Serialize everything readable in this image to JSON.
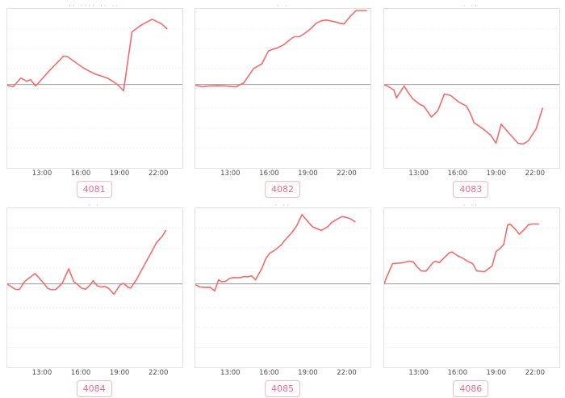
{
  "style": {
    "line_color": "#f56b6b",
    "baseline_color": "#9a9a9a",
    "grid_color": "#efefef",
    "plot_border_color": "#e2e2e2",
    "tick_label_color": "#4d4d4d",
    "badge_text_color": "#ec6d8d",
    "badge_border_color": "#f6b9c6",
    "background": "#ffffff"
  },
  "axis": {
    "tick_labels": [
      "13:00",
      "16:00",
      "19:00",
      "22:00"
    ],
    "tick_hours": [
      13,
      16,
      19,
      22
    ],
    "x_range_hours": [
      10.25,
      23.8
    ]
  },
  "chart_data": [
    {
      "type": "line",
      "chart_label": "4081",
      "title_fragment": "·· ···· ·· ··",
      "x_axis": {
        "tick_labels": [
          "13:00",
          "16:00",
          "19:00",
          "22:00"
        ],
        "unit": "time of day (hours)"
      },
      "y_axis": {
        "unit": "percent of plot height relative to zero baseline",
        "baseline": 0,
        "range_pct": [
          -52.5,
          47.5
        ]
      },
      "series": [
        {
          "name": "value",
          "color": "#f56b6b",
          "points_hour_pct": [
            [
              10.25,
              -0.5
            ],
            [
              10.7,
              -1.5
            ],
            [
              11.3,
              4
            ],
            [
              11.75,
              2
            ],
            [
              12.05,
              3
            ],
            [
              12.45,
              -1
            ],
            [
              13.5,
              8.5
            ],
            [
              14.6,
              17.8
            ],
            [
              14.9,
              17.5
            ],
            [
              16.2,
              10
            ],
            [
              17.05,
              6.5
            ],
            [
              18,
              4
            ],
            [
              18.5,
              1.5
            ],
            [
              18.9,
              -1
            ],
            [
              19.25,
              -4
            ],
            [
              19.9,
              33
            ],
            [
              20.55,
              37
            ],
            [
              21.45,
              41
            ],
            [
              22.2,
              38
            ],
            [
              22.6,
              35
            ]
          ]
        }
      ]
    },
    {
      "type": "line",
      "chart_label": "4082",
      "title_fragment": "· ·",
      "x_axis": {
        "tick_labels": [
          "13:00",
          "16:00",
          "19:00",
          "22:00"
        ],
        "unit": "time of day (hours)"
      },
      "y_axis": {
        "unit": "percent of plot height relative to zero baseline",
        "baseline": 0,
        "range_pct": [
          -52.5,
          47.5
        ]
      },
      "series": [
        {
          "name": "value",
          "color": "#f56b6b",
          "points_hour_pct": [
            [
              10.25,
              -0.5
            ],
            [
              10.8,
              -1.5
            ],
            [
              11.3,
              -1
            ],
            [
              12,
              -0.8
            ],
            [
              12.6,
              -1
            ],
            [
              13,
              -1.3
            ],
            [
              13.4,
              -1.5
            ],
            [
              14,
              1
            ],
            [
              14.75,
              10
            ],
            [
              15.4,
              13
            ],
            [
              15.9,
              21
            ],
            [
              16.2,
              22
            ],
            [
              16.6,
              23
            ],
            [
              17.1,
              25
            ],
            [
              17.55,
              28
            ],
            [
              17.9,
              30
            ],
            [
              18.3,
              30
            ],
            [
              18.7,
              32
            ],
            [
              19.25,
              35.5
            ],
            [
              19.6,
              38.5
            ],
            [
              20,
              40
            ],
            [
              20.4,
              40.5
            ],
            [
              21,
              39.5
            ],
            [
              21.4,
              38.5
            ],
            [
              21.75,
              38
            ],
            [
              22.25,
              43
            ],
            [
              22.7,
              46.5
            ],
            [
              23.5,
              46.5
            ]
          ]
        }
      ]
    },
    {
      "type": "line",
      "chart_label": "4083",
      "title_fragment": "· ··",
      "x_axis": {
        "tick_labels": [
          "13:00",
          "16:00",
          "19:00",
          "22:00"
        ],
        "unit": "time of day (hours)"
      },
      "y_axis": {
        "unit": "percent of plot height relative to zero baseline",
        "baseline": 0,
        "range_pct": [
          -52.5,
          47.5
        ]
      },
      "series": [
        {
          "name": "value",
          "color": "#f56b6b",
          "points_hour_pct": [
            [
              10.25,
              -0.3
            ],
            [
              10.5,
              -1
            ],
            [
              11,
              -3.5
            ],
            [
              11.2,
              -8.5
            ],
            [
              11.8,
              -1
            ],
            [
              12.1,
              -5
            ],
            [
              12.45,
              -9
            ],
            [
              13,
              -12.5
            ],
            [
              13.3,
              -13.5
            ],
            [
              13.9,
              -20.5
            ],
            [
              14.4,
              -16.5
            ],
            [
              14.9,
              -6
            ],
            [
              15.4,
              -7
            ],
            [
              16,
              -11
            ],
            [
              16.6,
              -13.5
            ],
            [
              16.9,
              -18
            ],
            [
              17.2,
              -24
            ],
            [
              17.9,
              -28
            ],
            [
              18.5,
              -32
            ],
            [
              18.9,
              -37
            ],
            [
              19.3,
              -25
            ],
            [
              20,
              -31.5
            ],
            [
              20.6,
              -37
            ],
            [
              21,
              -37.5
            ],
            [
              21.4,
              -35.5
            ],
            [
              22,
              -28
            ],
            [
              22.5,
              -15
            ]
          ]
        }
      ]
    },
    {
      "type": "line",
      "chart_label": "4084",
      "title_fragment": "· ·",
      "x_axis": {
        "tick_labels": [
          "13:00",
          "16:00",
          "19:00",
          "22:00"
        ],
        "unit": "time of day (hours)"
      },
      "y_axis": {
        "unit": "percent of plot height relative to zero baseline",
        "baseline": 0,
        "range_pct": [
          -52.5,
          47.5
        ]
      },
      "series": [
        {
          "name": "value",
          "color": "#f56b6b",
          "points_hour_pct": [
            [
              10.3,
              -0.5
            ],
            [
              10.9,
              -3.5
            ],
            [
              11.2,
              -3.5
            ],
            [
              11.6,
              1.5
            ],
            [
              12.4,
              6.5
            ],
            [
              12.9,
              2
            ],
            [
              13.4,
              -3
            ],
            [
              13.7,
              -3.7
            ],
            [
              14,
              -3.5
            ],
            [
              14.5,
              0.3
            ],
            [
              15,
              9.5
            ],
            [
              15.4,
              1.3
            ],
            [
              15.7,
              -0.5
            ],
            [
              16,
              -2.7
            ],
            [
              16.3,
              -3.4
            ],
            [
              16.6,
              -1.3
            ],
            [
              16.9,
              2
            ],
            [
              17.2,
              -1.2
            ],
            [
              17.5,
              -2
            ],
            [
              17.8,
              -1.6
            ],
            [
              18.1,
              -2.9
            ],
            [
              18.5,
              -6.5
            ],
            [
              19,
              -0.5
            ],
            [
              19.25,
              0.3
            ],
            [
              19.6,
              -2.2
            ],
            [
              19.8,
              -2.7
            ],
            [
              20.2,
              2
            ],
            [
              20.6,
              8
            ],
            [
              21,
              14
            ],
            [
              21.4,
              20
            ],
            [
              21.8,
              26
            ],
            [
              22.25,
              30
            ],
            [
              22.5,
              33.5
            ]
          ]
        }
      ]
    },
    {
      "type": "line",
      "chart_label": "4085",
      "title_fragment": "· ··",
      "x_axis": {
        "tick_labels": [
          "13:00",
          "16:00",
          "19:00",
          "22:00"
        ],
        "unit": "time of day (hours)"
      },
      "y_axis": {
        "unit": "percent of plot height relative to zero baseline",
        "baseline": 0,
        "range_pct": [
          -52.5,
          47.5
        ]
      },
      "series": [
        {
          "name": "value",
          "color": "#f56b6b",
          "points_hour_pct": [
            [
              10.3,
              -0.7
            ],
            [
              10.6,
              -2
            ],
            [
              11.1,
              -2.3
            ],
            [
              11.4,
              -2.2
            ],
            [
              11.75,
              -4.5
            ],
            [
              12.05,
              2.5
            ],
            [
              12.25,
              1.4
            ],
            [
              12.6,
              1.6
            ],
            [
              12.9,
              3.4
            ],
            [
              13.2,
              4
            ],
            [
              13.5,
              3.8
            ],
            [
              13.8,
              4
            ],
            [
              14,
              4.6
            ],
            [
              14.3,
              4.4
            ],
            [
              14.6,
              5
            ],
            [
              14.9,
              2.5
            ],
            [
              15.4,
              9.8
            ],
            [
              15.7,
              15.8
            ],
            [
              16,
              19.3
            ],
            [
              16.3,
              20.6
            ],
            [
              16.6,
              22.5
            ],
            [
              16.9,
              24.5
            ],
            [
              17.2,
              27.7
            ],
            [
              17.7,
              32
            ],
            [
              18.1,
              36.6
            ],
            [
              18.5,
              43.5
            ],
            [
              18.9,
              39.7
            ],
            [
              19.3,
              36
            ],
            [
              19.7,
              34.5
            ],
            [
              20,
              33.6
            ],
            [
              20.5,
              36
            ],
            [
              20.8,
              38.6
            ],
            [
              21.3,
              41
            ],
            [
              21.6,
              42.3
            ],
            [
              21.9,
              41.8
            ],
            [
              22.25,
              40.9
            ],
            [
              22.6,
              39
            ]
          ]
        }
      ]
    },
    {
      "type": "line",
      "chart_label": "4086",
      "title_fragment": "· ··",
      "x_axis": {
        "tick_labels": [
          "13:00",
          "16:00",
          "19:00",
          "22:00"
        ],
        "unit": "time of day (hours)"
      },
      "y_axis": {
        "unit": "percent of plot height relative to zero baseline",
        "baseline": 0,
        "range_pct": [
          -52.5,
          47.5
        ]
      },
      "series": [
        {
          "name": "value",
          "color": "#f56b6b",
          "points_hour_pct": [
            [
              10.25,
              0
            ],
            [
              10.4,
              3.5
            ],
            [
              10.9,
              12.7
            ],
            [
              11.3,
              13
            ],
            [
              11.7,
              13.3
            ],
            [
              12.15,
              14.2
            ],
            [
              12.5,
              13.8
            ],
            [
              12.8,
              10.7
            ],
            [
              13.1,
              8.1
            ],
            [
              13.5,
              8
            ],
            [
              14.05,
              13.7
            ],
            [
              14.25,
              14.2
            ],
            [
              14.5,
              13.3
            ],
            [
              15.3,
              19.7
            ],
            [
              15.5,
              20
            ],
            [
              15.9,
              17.8
            ],
            [
              16.3,
              16.3
            ],
            [
              16.7,
              14.2
            ],
            [
              17.1,
              12.7
            ],
            [
              17.4,
              8.1
            ],
            [
              17.7,
              7.9
            ],
            [
              18,
              7.6
            ],
            [
              18.6,
              11.2
            ],
            [
              18.9,
              20.3
            ],
            [
              19.2,
              22.1
            ],
            [
              19.5,
              24.8
            ],
            [
              19.8,
              37
            ],
            [
              20,
              37.5
            ],
            [
              20.4,
              34.3
            ],
            [
              20.7,
              31.2
            ],
            [
              21.1,
              34.3
            ],
            [
              21.4,
              37.2
            ],
            [
              21.7,
              37.6
            ],
            [
              22.2,
              37.6
            ]
          ]
        }
      ]
    }
  ]
}
